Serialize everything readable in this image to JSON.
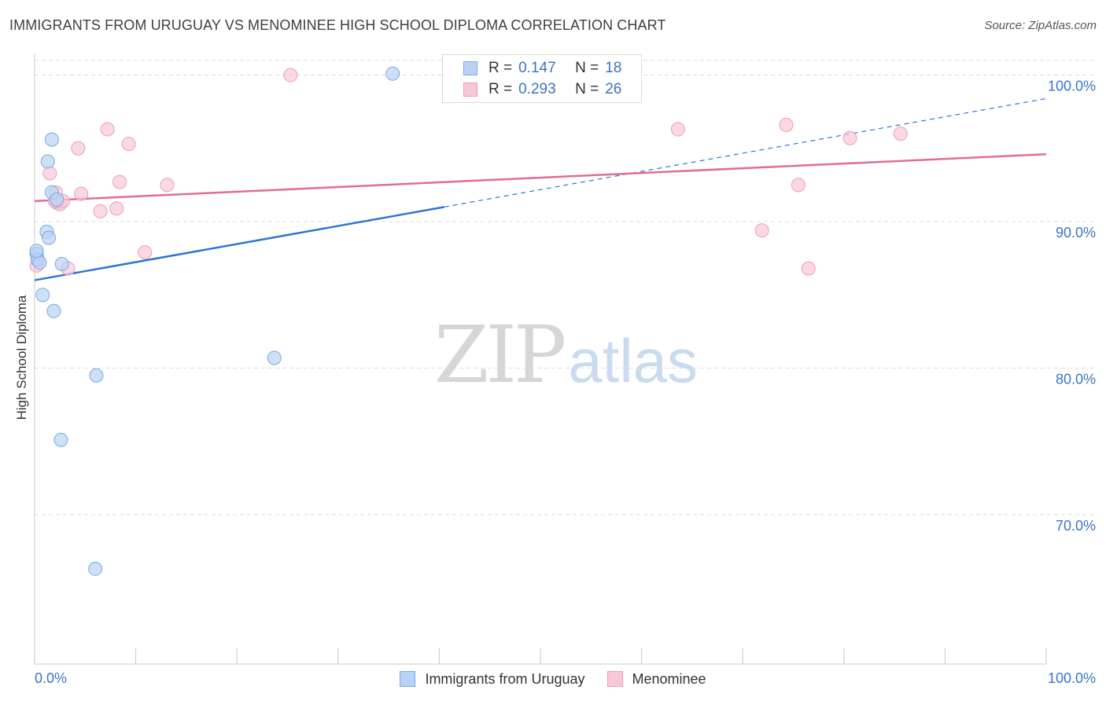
{
  "header": {
    "title": "IMMIGRANTS FROM URUGUAY VS MENOMINEE HIGH SCHOOL DIPLOMA CORRELATION CHART",
    "source": "Source: ZipAtlas.com"
  },
  "watermark": {
    "zip": "ZIP",
    "atlas": "atlas"
  },
  "stats": [
    {
      "r_label": "R =",
      "r_value": "0.147",
      "n_label": "N =",
      "n_value": "18"
    },
    {
      "r_label": "R =",
      "r_value": "0.293",
      "n_label": "N =",
      "n_value": "26"
    }
  ],
  "legend": {
    "series1": "Immigrants from Uruguay",
    "series2": "Menominee"
  },
  "colors": {
    "blue_fill": "#b8d3f5",
    "blue_stroke": "#7aa8e0",
    "blue_line": "#2f76d2",
    "pink_fill": "#f9c8d8",
    "pink_stroke": "#ec9cb8",
    "pink_line": "#e06c98",
    "axis_label": "#3a74c4",
    "grid": "#dcdcdc"
  },
  "chart_data": {
    "type": "scatter",
    "title": "IMMIGRANTS FROM URUGUAY VS MENOMINEE HIGH SCHOOL DIPLOMA CORRELATION CHART",
    "xlabel": "",
    "ylabel": "High School Diploma",
    "xlim": [
      0,
      100
    ],
    "ylim": [
      59.8,
      101.8
    ],
    "x_tick_labels": [
      "0.0%",
      "100.0%"
    ],
    "y_ticks": [
      70,
      80,
      90,
      100
    ],
    "y_tick_labels": [
      "70.0%",
      "80.0%",
      "90.0%",
      "100.0%"
    ],
    "series": [
      {
        "name": "Immigrants from Uruguay",
        "points": [
          [
            0.2,
            87.8
          ],
          [
            0.3,
            87.4
          ],
          [
            0.5,
            87.2
          ],
          [
            0.8,
            85.0
          ],
          [
            1.2,
            89.3
          ],
          [
            1.3,
            94.1
          ],
          [
            1.4,
            88.9
          ],
          [
            1.7,
            95.6
          ],
          [
            1.7,
            92.0
          ],
          [
            1.9,
            83.9
          ],
          [
            2.2,
            91.5
          ],
          [
            2.6,
            75.1
          ],
          [
            2.7,
            87.1
          ],
          [
            6.1,
            79.5
          ],
          [
            6.0,
            66.3
          ],
          [
            23.7,
            80.7
          ],
          [
            35.4,
            100.1
          ],
          [
            0.2,
            88.0
          ]
        ],
        "trend": {
          "x": [
            0,
            40.5
          ],
          "y": [
            86.0,
            91.0
          ],
          "dashed_to": [
            100,
            98.4
          ]
        }
      },
      {
        "name": "Menominee",
        "points": [
          [
            0.2,
            87.0
          ],
          [
            0.3,
            87.4
          ],
          [
            1.5,
            93.3
          ],
          [
            2.1,
            92.0
          ],
          [
            2.2,
            91.3
          ],
          [
            2.5,
            91.2
          ],
          [
            2.8,
            91.4
          ],
          [
            3.3,
            86.8
          ],
          [
            4.3,
            95.0
          ],
          [
            4.6,
            91.9
          ],
          [
            6.5,
            90.7
          ],
          [
            7.2,
            96.3
          ],
          [
            8.1,
            90.9
          ],
          [
            8.4,
            92.7
          ],
          [
            9.3,
            95.3
          ],
          [
            10.9,
            87.9
          ],
          [
            13.1,
            92.5
          ],
          [
            25.3,
            100.0
          ],
          [
            63.6,
            96.3
          ],
          [
            71.9,
            89.4
          ],
          [
            74.3,
            96.6
          ],
          [
            75.5,
            92.5
          ],
          [
            76.5,
            86.8
          ],
          [
            80.6,
            95.7
          ],
          [
            85.6,
            96.0
          ],
          [
            2.0,
            91.4
          ]
        ],
        "trend": {
          "x": [
            0,
            100
          ],
          "y": [
            91.4,
            94.6
          ]
        }
      }
    ]
  }
}
